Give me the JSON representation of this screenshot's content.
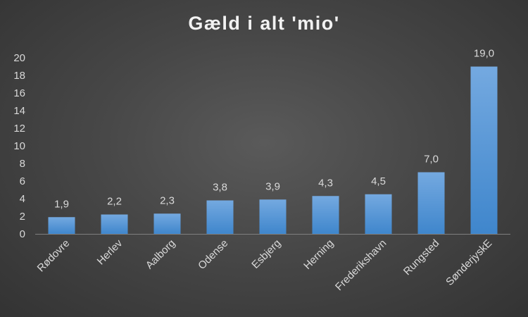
{
  "chart_data": {
    "type": "bar",
    "title": "Gæld i alt 'mio'",
    "xlabel": "",
    "ylabel": "",
    "categories": [
      "Rødovre",
      "Herlev",
      "Aalborg",
      "Odense",
      "Esbjerg",
      "Herning",
      "Frederikshavn",
      "Rungsted",
      "SønderjyskE"
    ],
    "values": [
      1.9,
      2.2,
      2.3,
      3.8,
      3.9,
      4.3,
      4.5,
      7.0,
      19.0
    ],
    "data_labels": [
      "1,9",
      "2,2",
      "2,3",
      "3,8",
      "3,9",
      "4,3",
      "4,5",
      "7,0",
      "19,0"
    ],
    "ylim": [
      0,
      20
    ],
    "yticks": [
      0,
      2,
      4,
      6,
      8,
      10,
      12,
      14,
      16,
      18,
      20
    ],
    "grid": false,
    "legend": "none",
    "colors": {
      "bar_top": "#74a9e0",
      "bar_bottom": "#3f86cc",
      "text": "#d9d9d9",
      "title": "#f2f2f2",
      "axis": "#7f7f7f"
    }
  }
}
